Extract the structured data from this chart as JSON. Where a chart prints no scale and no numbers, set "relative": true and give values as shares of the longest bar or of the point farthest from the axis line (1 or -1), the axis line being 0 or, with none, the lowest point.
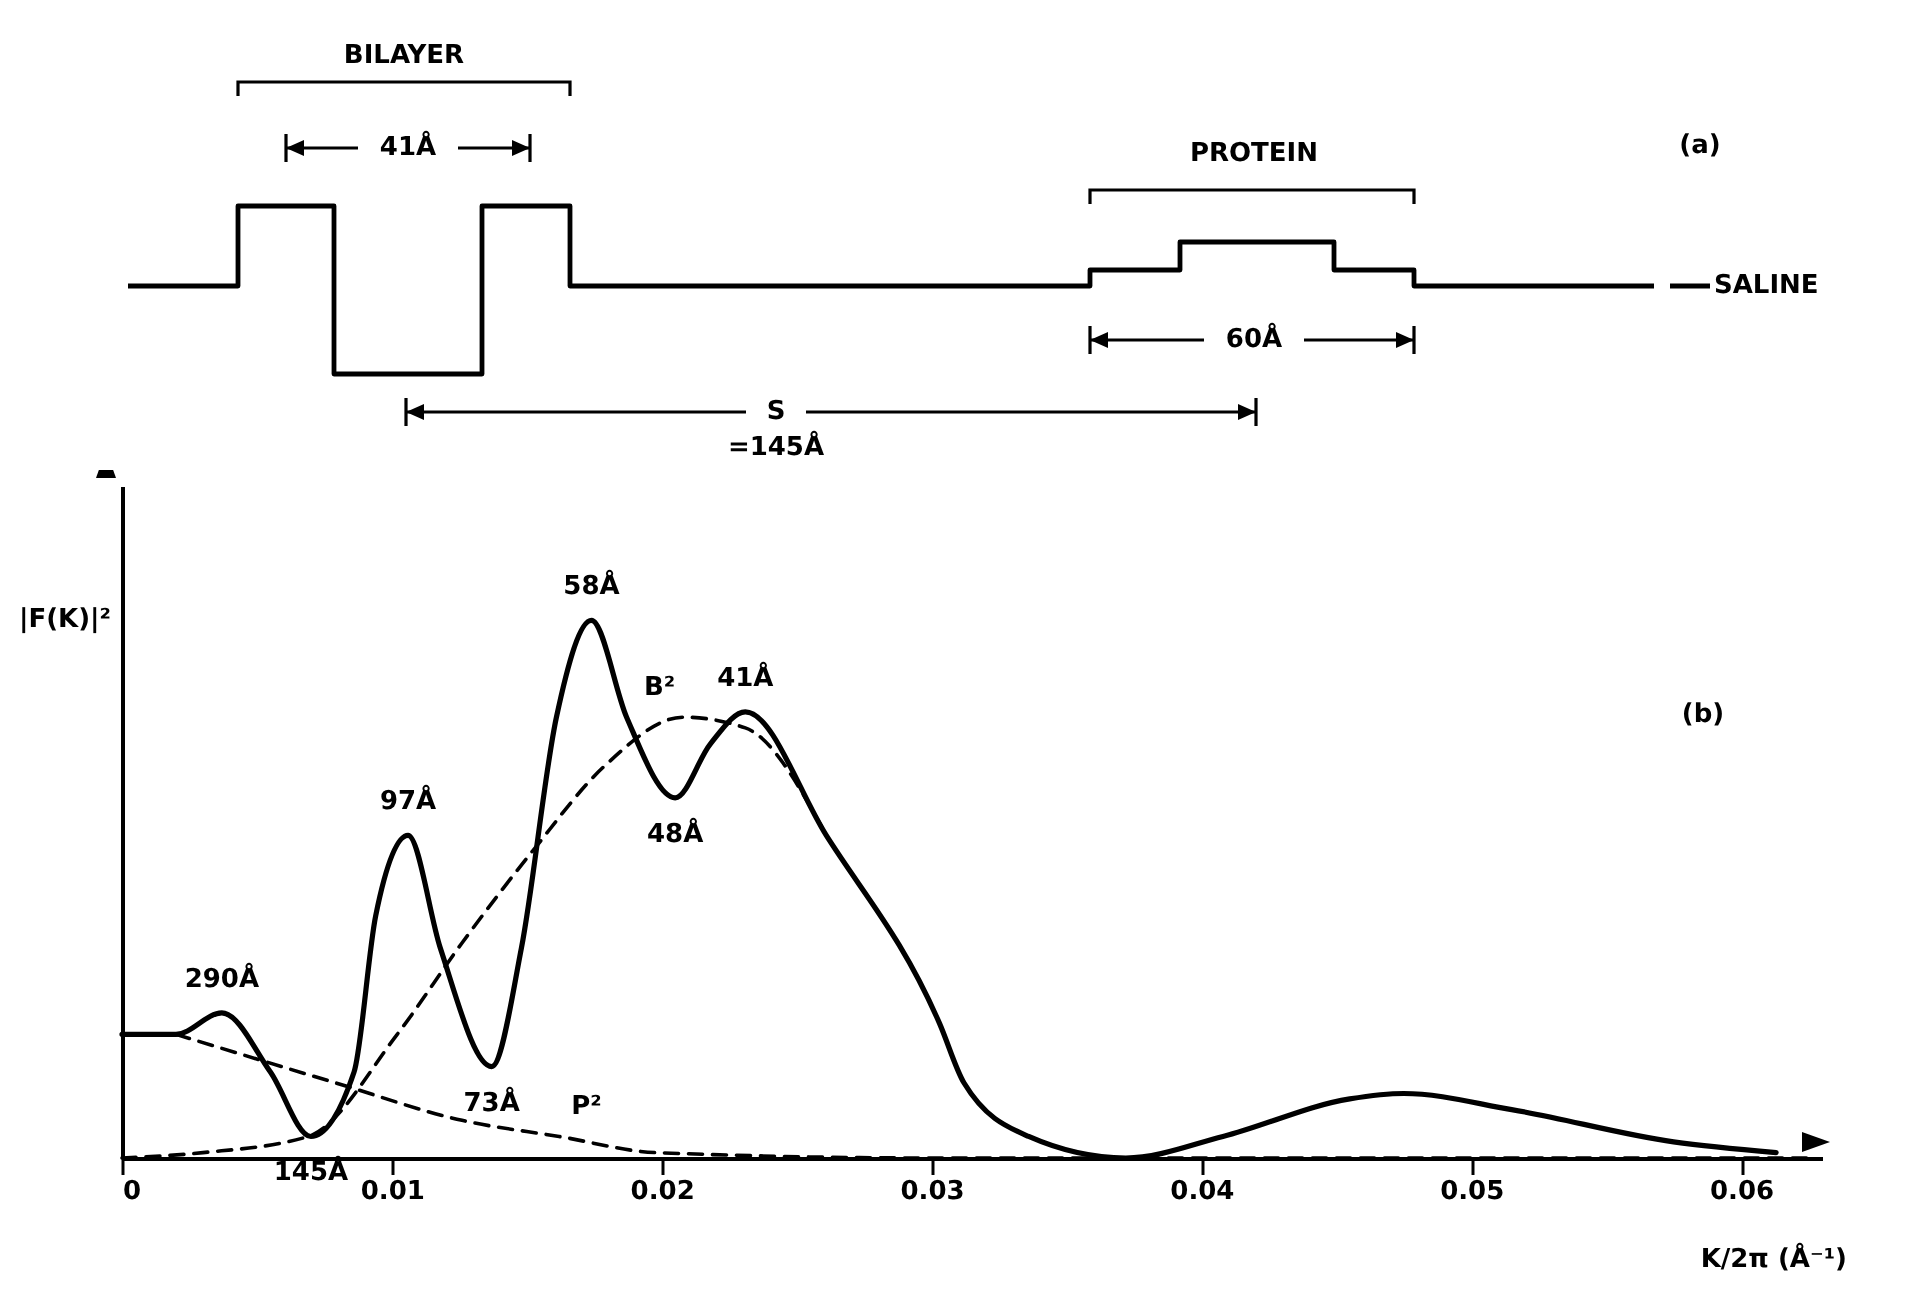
{
  "chart_data": [
    {
      "type": "other",
      "annotations": [
        "BILAYER",
        "41Å",
        "PROTEIN",
        "60Å",
        "S",
        "=145Å",
        "SALINE",
        "(a)"
      ]
    },
    {
      "type": "line",
      "relative": true,
      "tick_labels": "x",
      "xlabel": "K/2π (Å⁻¹)",
      "ylabel": "|F(K)|²",
      "xlim": [
        0,
        0.063
      ],
      "xticks": [
        0,
        0.01,
        0.02,
        0.03,
        0.04,
        0.05,
        0.06
      ],
      "series": [
        {
          "color": "#000000",
          "x": [
            0,
            0.002,
            0.0037,
            0.0055,
            0.007,
            0.0086,
            0.0094,
            0.0106,
            0.0118,
            0.0137,
            0.0148,
            0.0161,
            0.0174,
            0.0187,
            0.0205,
            0.0218,
            0.0231,
            0.0261,
            0.0303,
            0.0312,
            0.0336,
            0.0372,
            0.0408,
            0.0455,
            0.0475,
            0.0515,
            0.0575,
            0.0613
          ],
          "values": [
            0.23,
            0.23,
            0.27,
            0.16,
            0.04,
            0.16,
            0.45,
            0.6,
            0.39,
            0.17,
            0.39,
            0.82,
            1,
            0.82,
            0.67,
            0.77,
            0.83,
            0.6,
            0.25,
            0.14,
            0.04,
            0,
            0.04,
            0.11,
            0.12,
            0.09,
            0.03,
            0.01
          ]
        },
        {
          "name": "B²",
          "color": "#000000",
          "line_style": "dashed",
          "x": [
            0,
            0.003,
            0.0069,
            0.0102,
            0.0126,
            0.0152,
            0.0179,
            0.0208,
            0.0231,
            0.026
          ],
          "values": [
            0,
            0.01,
            0.04,
            0.23,
            0.4,
            0.57,
            0.73,
            0.82,
            0.8,
            0.61
          ]
        },
        {
          "name": "P²",
          "color": "#000000",
          "line_style": "dashed",
          "x": [
            0.002,
            0.0079,
            0.0126,
            0.0162,
            0.0198,
            0.03,
            0.045,
            0.0625
          ],
          "values": [
            0.23,
            0.14,
            0.07,
            0.04,
            0.01,
            0,
            0,
            0
          ]
        }
      ],
      "annotations": [
        {
          "text": "290Å",
          "x": 0.0037,
          "y": 0.27
        },
        {
          "text": "145Å",
          "x": 0.007,
          "y": 0.04
        },
        {
          "text": "97Å",
          "x": 0.0106,
          "y": 0.6
        },
        {
          "text": "73Å",
          "x": 0.0137,
          "y": 0.17
        },
        {
          "text": "58Å",
          "x": 0.0174,
          "y": 1
        },
        {
          "text": "48Å",
          "x": 0.0205,
          "y": 0.67
        },
        {
          "text": "41Å",
          "x": 0.0231,
          "y": 0.83
        },
        "(b)"
      ]
    }
  ]
}
